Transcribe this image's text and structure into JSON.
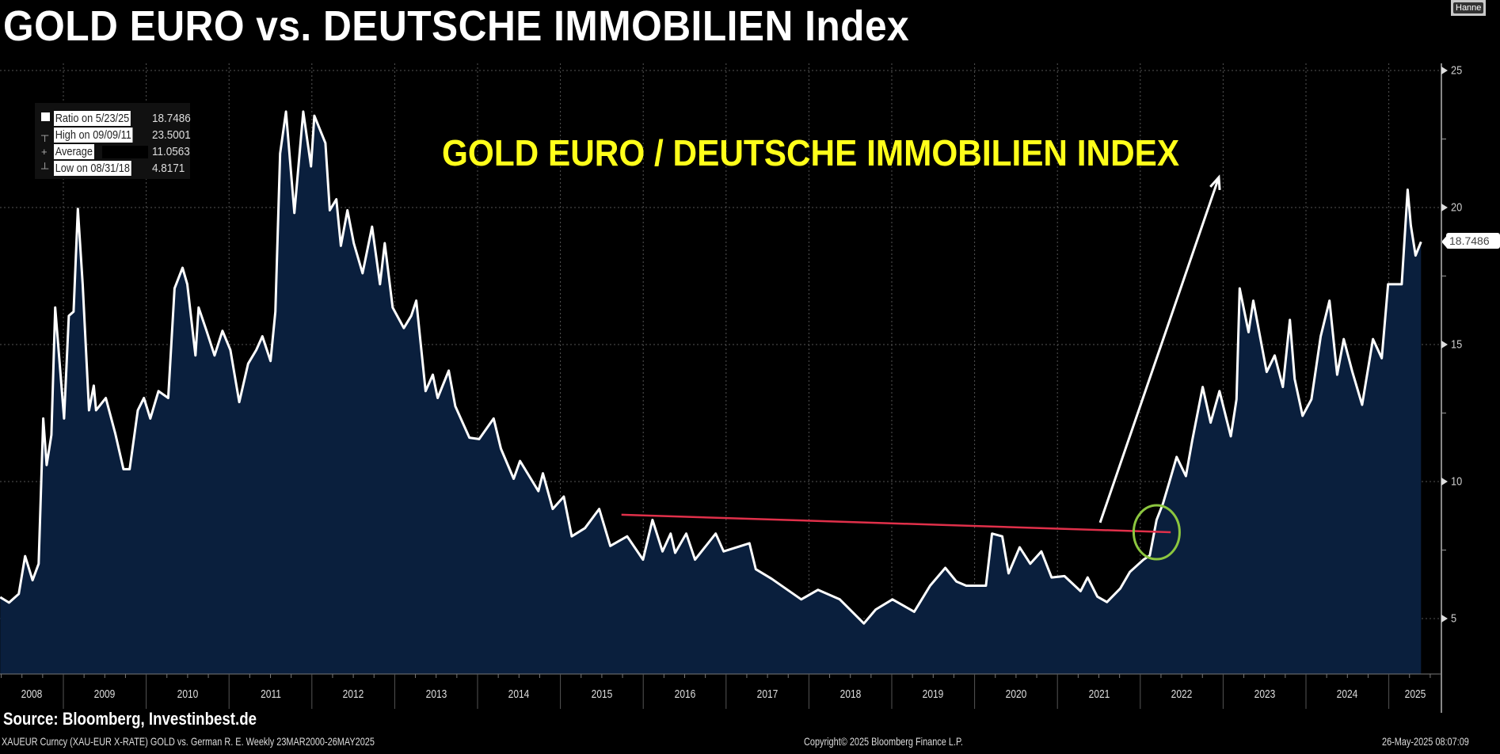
{
  "title": "GOLD EURO vs. DEUTSCHE IMMOBILIEN Index",
  "overlay_title": "GOLD EURO / DEUTSCHE IMMOBILIEN INDEX",
  "top_right_button": "Hanne",
  "legend": {
    "items": [
      {
        "label": "Ratio on 5/23/25",
        "value": "18.7486"
      },
      {
        "label": "High on 09/09/11",
        "value": "23.5001"
      },
      {
        "label": "Average",
        "value": "11.0563"
      },
      {
        "label": "Low on 08/31/18",
        "value": "4.8171"
      }
    ]
  },
  "current_value_label": "18.7486",
  "footer": {
    "source": "Source: Bloomberg, Investinbest.de",
    "ticker_info": "XAUEUR Curncy (XAU-EUR X-RATE) GOLD vs. German R. E.  Weekly 23MAR2000-26MAY2025",
    "copyright": "Copyright© 2025 Bloomberg Finance L.P.",
    "timestamp": "26-May-2025 08:07:09"
  },
  "colors": {
    "background": "#000000",
    "area_fill": "#0a1f3d",
    "line": "#ffffff",
    "annotation_title": "#ffff1a",
    "trendline": "#e0304a",
    "circle": "#8cc63f",
    "arrow": "#ffffff"
  },
  "chart_data": {
    "type": "area",
    "x_tick_labels": [
      "2008",
      "2009",
      "2010",
      "2011",
      "2012",
      "2013",
      "2014",
      "2015",
      "2016",
      "2017",
      "2018",
      "2019",
      "2020",
      "2021",
      "2022",
      "2023",
      "2024",
      "2025"
    ],
    "y_tick_labels": [
      "25",
      "20",
      "15",
      "10",
      "5"
    ],
    "ylim": [
      3,
      25.4
    ],
    "xlim": [
      "2008-03-28",
      "2025-06-30"
    ],
    "y_axis_side": "right",
    "grid": true,
    "legend_position": "top-left",
    "series": [
      {
        "points": [
          [
            "2008-03-28",
            5.78
          ],
          [
            "2008-05-06",
            5.58
          ],
          [
            "2008-06-18",
            5.9
          ],
          [
            "2008-07-16",
            7.28
          ],
          [
            "2008-08-18",
            6.4
          ],
          [
            "2008-09-14",
            7.0
          ],
          [
            "2008-10-04",
            12.3
          ],
          [
            "2008-10-19",
            10.6
          ],
          [
            "2008-11-09",
            11.7
          ],
          [
            "2008-11-26",
            16.35
          ],
          [
            "2009-01-04",
            12.3
          ],
          [
            "2009-01-25",
            16.05
          ],
          [
            "2009-02-15",
            16.2
          ],
          [
            "2009-03-06",
            19.95
          ],
          [
            "2009-03-27",
            17.2
          ],
          [
            "2009-04-24",
            12.6
          ],
          [
            "2009-05-15",
            13.5
          ],
          [
            "2009-05-25",
            12.6
          ],
          [
            "2009-07-07",
            13.05
          ],
          [
            "2009-08-18",
            11.75
          ],
          [
            "2009-09-23",
            10.45
          ],
          [
            "2009-10-20",
            10.45
          ],
          [
            "2009-11-25",
            12.6
          ],
          [
            "2009-12-22",
            13.05
          ],
          [
            "2010-01-19",
            12.3
          ],
          [
            "2010-02-24",
            13.3
          ],
          [
            "2010-04-08",
            13.05
          ],
          [
            "2010-05-06",
            17.05
          ],
          [
            "2010-06-10",
            17.8
          ],
          [
            "2010-07-01",
            17.2
          ],
          [
            "2010-08-06",
            14.6
          ],
          [
            "2010-08-20",
            16.35
          ],
          [
            "2010-09-24",
            15.5
          ],
          [
            "2010-10-29",
            14.6
          ],
          [
            "2010-12-03",
            15.5
          ],
          [
            "2011-01-07",
            14.8
          ],
          [
            "2011-02-15",
            12.9
          ],
          [
            "2011-03-26",
            14.3
          ],
          [
            "2011-05-01",
            14.8
          ],
          [
            "2011-05-28",
            15.3
          ],
          [
            "2011-07-03",
            14.4
          ],
          [
            "2011-07-24",
            16.2
          ],
          [
            "2011-08-14",
            21.97
          ],
          [
            "2011-09-09",
            23.5
          ],
          [
            "2011-10-16",
            19.8
          ],
          [
            "2011-11-24",
            23.5
          ],
          [
            "2011-12-28",
            21.5
          ],
          [
            "2012-01-12",
            23.35
          ],
          [
            "2012-03-01",
            22.35
          ],
          [
            "2012-03-20",
            19.9
          ],
          [
            "2012-04-18",
            20.3
          ],
          [
            "2012-05-08",
            18.6
          ],
          [
            "2012-06-06",
            19.9
          ],
          [
            "2012-07-04",
            18.7
          ],
          [
            "2012-08-12",
            17.6
          ],
          [
            "2012-09-23",
            19.3
          ],
          [
            "2012-10-28",
            17.2
          ],
          [
            "2012-11-18",
            18.7
          ],
          [
            "2012-12-23",
            16.35
          ],
          [
            "2013-02-10",
            15.6
          ],
          [
            "2013-03-15",
            16.05
          ],
          [
            "2013-04-06",
            16.6
          ],
          [
            "2013-05-17",
            13.3
          ],
          [
            "2013-06-18",
            13.9
          ],
          [
            "2013-07-09",
            13.05
          ],
          [
            "2013-08-27",
            14.05
          ],
          [
            "2013-09-25",
            12.75
          ],
          [
            "2013-11-26",
            11.6
          ],
          [
            "2014-01-08",
            11.55
          ],
          [
            "2014-03-13",
            12.3
          ],
          [
            "2014-04-14",
            11.2
          ],
          [
            "2014-06-09",
            10.1
          ],
          [
            "2014-07-07",
            10.75
          ],
          [
            "2014-09-26",
            9.65
          ],
          [
            "2014-10-16",
            10.3
          ],
          [
            "2014-11-28",
            9.0
          ],
          [
            "2015-01-16",
            9.45
          ],
          [
            "2015-02-20",
            8.0
          ],
          [
            "2015-04-19",
            8.3
          ],
          [
            "2015-06-21",
            9.0
          ],
          [
            "2015-08-09",
            7.65
          ],
          [
            "2015-10-22",
            8.0
          ],
          [
            "2015-12-31",
            7.15
          ],
          [
            "2016-02-11",
            8.6
          ],
          [
            "2016-03-26",
            7.45
          ],
          [
            "2016-05-01",
            8.1
          ],
          [
            "2016-05-21",
            7.4
          ],
          [
            "2016-07-09",
            8.1
          ],
          [
            "2016-08-17",
            7.15
          ],
          [
            "2016-11-16",
            8.1
          ],
          [
            "2016-12-21",
            7.45
          ],
          [
            "2017-04-14",
            7.75
          ],
          [
            "2017-05-12",
            6.8
          ],
          [
            "2017-07-21",
            6.45
          ],
          [
            "2017-11-28",
            5.7
          ],
          [
            "2018-02-10",
            6.05
          ],
          [
            "2018-05-17",
            5.7
          ],
          [
            "2018-08-31",
            4.82
          ],
          [
            "2018-10-22",
            5.33
          ],
          [
            "2019-01-04",
            5.7
          ],
          [
            "2019-04-10",
            5.25
          ],
          [
            "2019-06-19",
            6.2
          ],
          [
            "2019-08-25",
            6.85
          ],
          [
            "2019-10-13",
            6.35
          ],
          [
            "2019-11-25",
            6.2
          ],
          [
            "2020-02-20",
            6.2
          ],
          [
            "2020-03-18",
            8.1
          ],
          [
            "2020-05-02",
            8.0
          ],
          [
            "2020-05-30",
            6.65
          ],
          [
            "2020-07-18",
            7.6
          ],
          [
            "2020-09-03",
            7.0
          ],
          [
            "2020-10-22",
            7.45
          ],
          [
            "2020-12-06",
            6.5
          ],
          [
            "2021-02-01",
            6.55
          ],
          [
            "2021-04-13",
            6.0
          ],
          [
            "2021-05-14",
            6.5
          ],
          [
            "2021-06-26",
            5.8
          ],
          [
            "2021-08-07",
            5.6
          ],
          [
            "2021-10-05",
            6.1
          ],
          [
            "2021-11-16",
            6.7
          ],
          [
            "2022-01-15",
            7.15
          ],
          [
            "2022-02-12",
            7.3
          ],
          [
            "2022-03-14",
            8.6
          ],
          [
            "2022-04-11",
            9.2
          ],
          [
            "2022-05-08",
            9.95
          ],
          [
            "2022-06-10",
            10.9
          ],
          [
            "2022-07-21",
            10.2
          ],
          [
            "2022-08-18",
            11.5
          ],
          [
            "2022-10-03",
            13.45
          ],
          [
            "2022-11-07",
            12.15
          ],
          [
            "2022-12-16",
            13.3
          ],
          [
            "2023-02-04",
            11.65
          ],
          [
            "2023-03-01",
            13.0
          ],
          [
            "2023-03-15",
            17.05
          ],
          [
            "2023-04-23",
            15.45
          ],
          [
            "2023-05-14",
            16.6
          ],
          [
            "2023-07-12",
            14.0
          ],
          [
            "2023-08-16",
            14.6
          ],
          [
            "2023-09-21",
            13.45
          ],
          [
            "2023-10-22",
            15.9
          ],
          [
            "2023-11-12",
            13.75
          ],
          [
            "2023-12-17",
            12.4
          ],
          [
            "2024-01-25",
            13.0
          ],
          [
            "2024-03-06",
            15.3
          ],
          [
            "2024-04-14",
            16.6
          ],
          [
            "2024-05-18",
            13.9
          ],
          [
            "2024-06-16",
            15.2
          ],
          [
            "2024-07-24",
            14.0
          ],
          [
            "2024-09-05",
            12.8
          ],
          [
            "2024-10-23",
            15.2
          ],
          [
            "2024-12-01",
            14.5
          ],
          [
            "2024-12-29",
            17.2
          ],
          [
            "2025-02-27",
            17.2
          ],
          [
            "2025-03-25",
            20.65
          ],
          [
            "2025-04-08",
            19.35
          ],
          [
            "2025-04-29",
            18.25
          ],
          [
            "2025-05-23",
            18.75
          ]
        ]
      }
    ],
    "annotations": {
      "trendline": {
        "from": [
          "2015-09-27",
          8.79
        ],
        "to": [
          "2022-05-15",
          8.15
        ]
      },
      "arrow": {
        "from": [
          "2021-07-08",
          8.5
        ],
        "to": [
          "2022-12-13",
          21.1
        ]
      },
      "circle": {
        "center": [
          "2022-03-14",
          8.15
        ]
      }
    }
  }
}
